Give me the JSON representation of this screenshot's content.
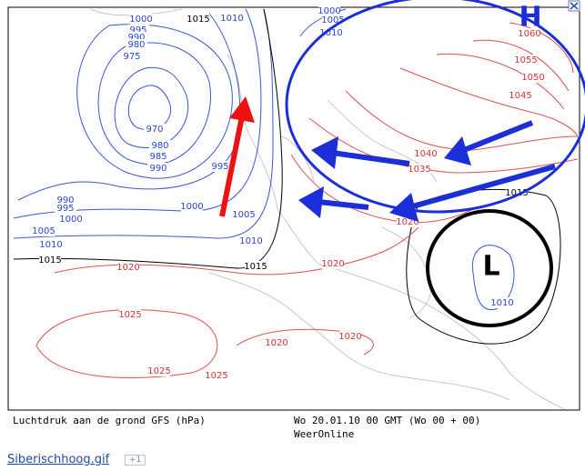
{
  "map": {
    "high_symbol": "H",
    "low_symbol": "L",
    "blue_labels": [
      "1000",
      "995",
      "990",
      "980",
      "975",
      "970",
      "980",
      "985",
      "990",
      "995",
      "1000",
      "1005",
      "1010",
      "990",
      "995",
      "1000",
      "1005",
      "1010",
      "1005",
      "1010",
      "1000",
      "1010",
      "1010"
    ],
    "black_labels": [
      "1015",
      "1015",
      "1015",
      "1015"
    ],
    "red_labels": [
      "1060",
      "1055",
      "1050",
      "1045",
      "1040",
      "1035",
      "1020",
      "1020",
      "1020",
      "1025",
      "1020",
      "1020",
      "1025",
      "1025"
    ],
    "caption_left": "Luchtdruk aan de grond GFS (hPa)",
    "caption_right": "Wo 20.01.10 00 GMT (Wo 00 + 00)",
    "source": "WeerOnline"
  },
  "link": {
    "text": "Siberischhoog.gif",
    "badge": "+1"
  }
}
